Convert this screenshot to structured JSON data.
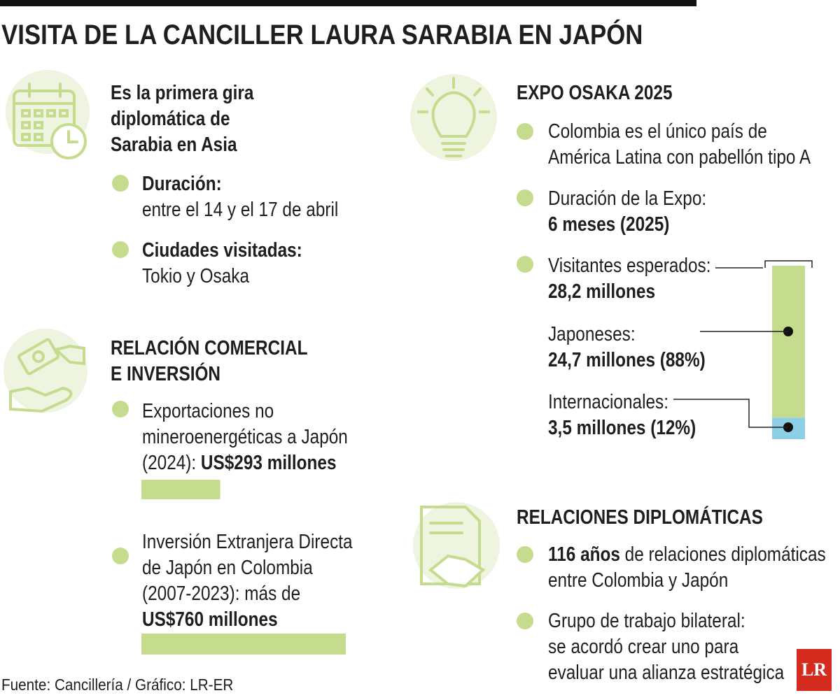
{
  "title": "VISITA DE LA CANCILLER LAURA SARABIA EN JAPÓN",
  "source": "Fuente: Cancillería / Gráfico: LR-ER",
  "logo": "LR",
  "gira": {
    "heading": [
      "Es la primera gira",
      "diplomática de",
      "Sarabia en Asia"
    ],
    "items": [
      {
        "label": "Duración:",
        "text": "entre el 14 y el 17 de abril"
      },
      {
        "label": "Ciudades visitadas:",
        "text": "Tokio y Osaka"
      }
    ]
  },
  "comercio": {
    "heading": [
      "RELACIÓN COMERCIAL",
      "E INVERSIÓN"
    ],
    "items": [
      {
        "lines": [
          "Exportaciones no",
          "mineroenergéticas a Japón",
          "(2024):"
        ],
        "value": 293,
        "value_label": "US$293 millones"
      },
      {
        "lines": [
          "Inversión Extranjera Directa",
          "de Japón en Colombia",
          "(2007-2023): más de"
        ],
        "value": 760,
        "value_label": "US$760 millones"
      }
    ]
  },
  "expo": {
    "heading": "EXPO OSAKA 2025",
    "pabellon": [
      "Colombia es el único país de",
      "América Latina con pabellón tipo A"
    ],
    "duracion": {
      "label": "Duración de la Expo:",
      "value_label": "6 meses (2025)"
    },
    "visitantes": {
      "label": "Visitantes esperados:",
      "value": 28.2,
      "value_label": "28,2 millones",
      "segments": [
        {
          "name": "Japoneses:",
          "value": 24.7,
          "share": 88,
          "value_label": "24,7 millones (88%)"
        },
        {
          "name": "Internacionales:",
          "value": 3.5,
          "share": 12,
          "value_label": "3,5 millones (12%)"
        }
      ]
    }
  },
  "diplomacia": {
    "heading": "RELACIONES DIPLOMÁTICAS",
    "items": [
      {
        "bold": "116 años",
        "lines": [
          "de relaciones diplomáticas",
          "entre Colombia y Japón"
        ]
      },
      {
        "lines": [
          "Grupo de trabajo bilateral:",
          "se acordó crear uno para",
          "evaluar una alianza estratégica"
        ]
      }
    ]
  }
}
